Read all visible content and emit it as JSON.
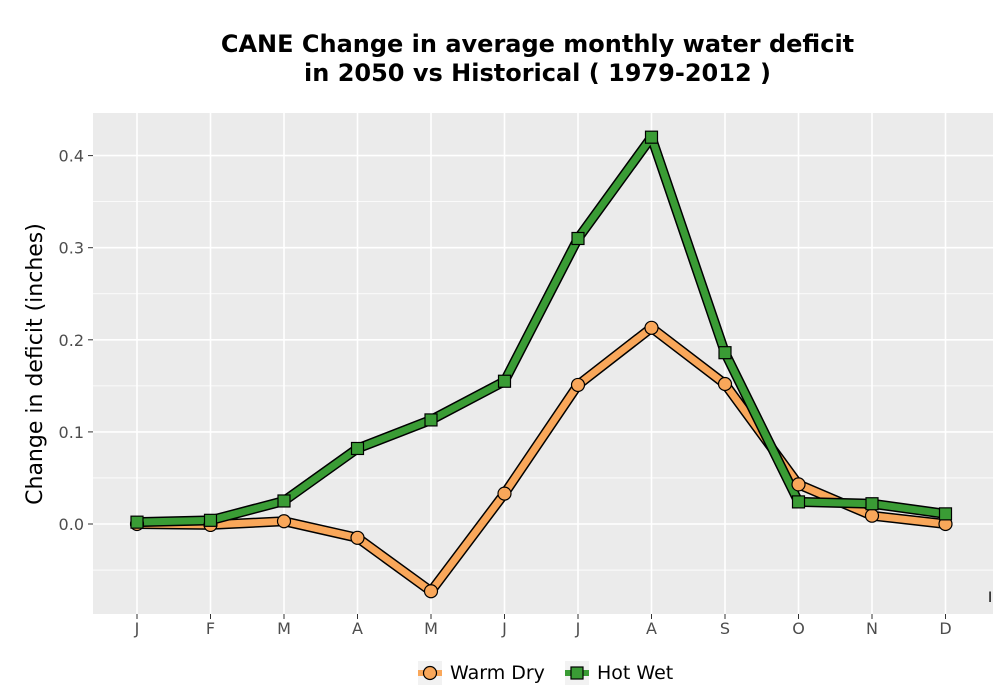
{
  "chart_data": {
    "type": "line",
    "title_lines": [
      "CANE  Change in average monthly water deficit",
      "in 2050 vs Historical ( 1979-2012 )"
    ],
    "xlabel": "",
    "ylabel": "Change in deficit (inches)",
    "categories": [
      "J",
      "F",
      "M",
      "A",
      "M",
      "J",
      "J",
      "A",
      "S",
      "O",
      "N",
      "D"
    ],
    "ylim": [
      -0.1,
      0.44
    ],
    "yticks": [
      0.0,
      0.1,
      0.2,
      0.3,
      0.4
    ],
    "yticklabels": [
      "0.0",
      "0.1",
      "0.2",
      "0.3",
      "0.4"
    ],
    "grid": true,
    "legend_position": "bottom",
    "stray_mark": "I",
    "series": [
      {
        "name": "Warm Dry",
        "marker": "circle",
        "color": "#f9a75a",
        "values": [
          0.0,
          -0.001,
          0.003,
          -0.015,
          -0.073,
          0.033,
          0.151,
          0.213,
          0.152,
          0.043,
          0.009,
          0.0
        ]
      },
      {
        "name": "Hot Wet",
        "marker": "square",
        "color": "#3a9c35",
        "values": [
          0.002,
          0.004,
          0.025,
          0.082,
          0.113,
          0.155,
          0.31,
          0.42,
          0.186,
          0.024,
          0.022,
          0.011
        ]
      }
    ]
  },
  "colors": {
    "panel_bg": "#ebebeb",
    "grid": "#ffffff",
    "outline": "#000000",
    "tick_text": "#4d4d4d"
  }
}
